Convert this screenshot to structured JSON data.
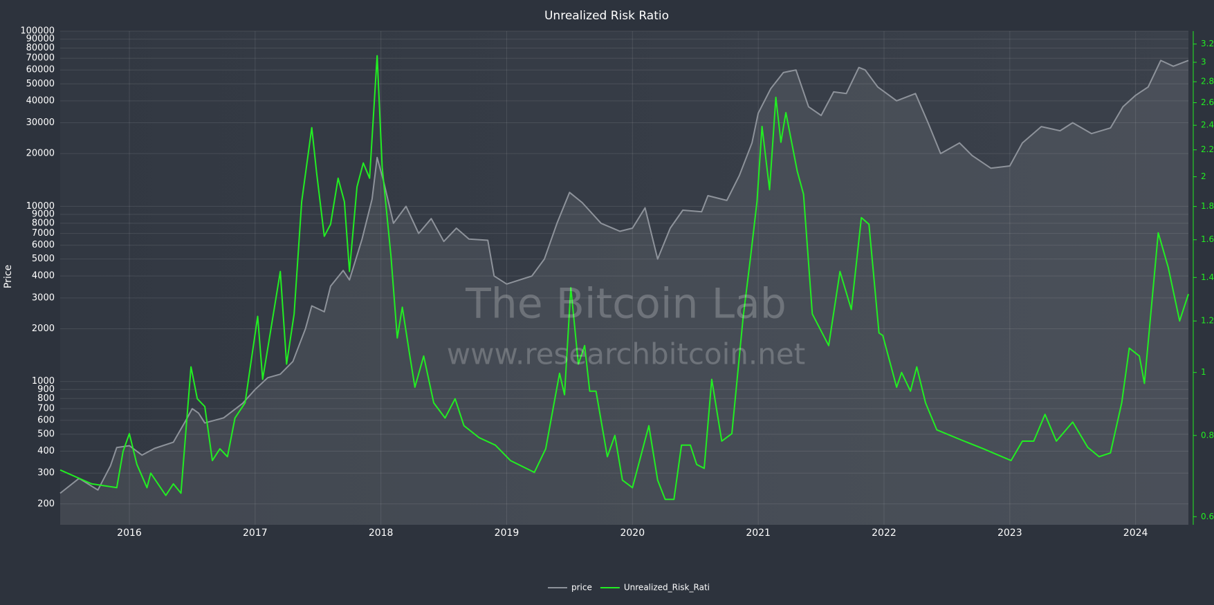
{
  "chart_data": {
    "type": "line",
    "title": "Unrealized Risk Ratio",
    "y_label": "Price",
    "annotations": [
      "The Bitcoin Lab",
      "www.researchbitcoin.net"
    ],
    "log_y": true,
    "log_y2": true,
    "grid": true,
    "legend": "bottom",
    "xlim": [
      2015.45,
      2024.42
    ],
    "xticks": [
      2016,
      2017,
      2018,
      2019,
      2020,
      2021,
      2022,
      2023,
      2024
    ],
    "ylim": [
      152,
      100000
    ],
    "yticks": [
      200,
      300,
      400,
      500,
      600,
      700,
      800,
      900,
      1000,
      2000,
      3000,
      4000,
      5000,
      6000,
      7000,
      8000,
      9000,
      10000,
      20000,
      30000,
      40000,
      50000,
      60000,
      70000,
      80000,
      90000,
      100000
    ],
    "y2lim": [
      0.583,
      3.35
    ],
    "y2ticks": [
      0.6,
      0.8,
      1,
      1.2,
      1.4,
      1.6,
      1.8,
      2,
      2.2,
      2.4,
      2.6,
      2.8,
      3,
      3.2
    ],
    "series": [
      {
        "name": "price",
        "color": "#8e939b",
        "x": [
          2015.45,
          2015.6,
          2015.75,
          2015.85,
          2015.9,
          2016.0,
          2016.1,
          2016.2,
          2016.35,
          2016.45,
          2016.5,
          2016.55,
          2016.6,
          2016.75,
          2016.9,
          2017.0,
          2017.1,
          2017.2,
          2017.3,
          2017.4,
          2017.45,
          2017.55,
          2017.6,
          2017.7,
          2017.75,
          2017.85,
          2017.93,
          2017.97,
          2018.02,
          2018.1,
          2018.2,
          2018.3,
          2018.4,
          2018.5,
          2018.6,
          2018.7,
          2018.85,
          2018.9,
          2019.0,
          2019.2,
          2019.3,
          2019.4,
          2019.5,
          2019.6,
          2019.75,
          2019.9,
          2020.0,
          2020.1,
          2020.2,
          2020.3,
          2020.4,
          2020.55,
          2020.6,
          2020.75,
          2020.85,
          2020.95,
          2021.0,
          2021.1,
          2021.2,
          2021.3,
          2021.4,
          2021.5,
          2021.6,
          2021.7,
          2021.8,
          2021.85,
          2021.95,
          2022.1,
          2022.25,
          2022.35,
          2022.45,
          2022.6,
          2022.7,
          2022.85,
          2023.0,
          2023.1,
          2023.25,
          2023.4,
          2023.5,
          2023.65,
          2023.8,
          2023.9,
          2024.0,
          2024.1,
          2024.2,
          2024.3,
          2024.42
        ],
        "values": [
          230,
          280,
          240,
          330,
          420,
          430,
          380,
          415,
          450,
          600,
          700,
          660,
          580,
          620,
          750,
          900,
          1050,
          1100,
          1300,
          2000,
          2700,
          2500,
          3500,
          4300,
          3800,
          6500,
          11000,
          19000,
          14000,
          8000,
          10000,
          7000,
          8500,
          6300,
          7500,
          6500,
          6400,
          4000,
          3600,
          4000,
          5000,
          8000,
          12000,
          10500,
          8000,
          7200,
          7500,
          9800,
          5000,
          7500,
          9500,
          9300,
          11500,
          10800,
          15000,
          23000,
          34000,
          47000,
          58000,
          60000,
          37000,
          33000,
          45000,
          44000,
          62000,
          60000,
          48000,
          40000,
          44000,
          30000,
          20000,
          23000,
          19500,
          16500,
          17000,
          23000,
          28500,
          27000,
          30000,
          26000,
          28000,
          37000,
          43000,
          48000,
          68000,
          63000,
          68000
        ]
      },
      {
        "name": "Unrealized_Risk_Rati",
        "color": "#22ee22",
        "axis": "y2",
        "x": [
          2015.45,
          2015.7,
          2015.9,
          2015.95,
          2016.0,
          2016.06,
          2016.14,
          2016.17,
          2016.29,
          2016.35,
          2016.41,
          2016.49,
          2016.54,
          2016.6,
          2016.66,
          2016.72,
          2016.78,
          2016.84,
          2016.92,
          2017.02,
          2017.06,
          2017.12,
          2017.2,
          2017.25,
          2017.31,
          2017.37,
          2017.45,
          2017.49,
          2017.55,
          2017.6,
          2017.66,
          2017.71,
          2017.75,
          2017.81,
          2017.86,
          2017.91,
          2017.97,
          2018.01,
          2018.08,
          2018.13,
          2018.17,
          2018.23,
          2018.27,
          2018.34,
          2018.42,
          2018.51,
          2018.59,
          2018.66,
          2018.78,
          2018.91,
          2019.03,
          2019.22,
          2019.31,
          2019.42,
          2019.46,
          2019.51,
          2019.57,
          2019.62,
          2019.66,
          2019.71,
          2019.8,
          2019.86,
          2019.92,
          2020.0,
          2020.13,
          2020.2,
          2020.26,
          2020.33,
          2020.39,
          2020.46,
          2020.51,
          2020.57,
          2020.63,
          2020.71,
          2020.79,
          2020.88,
          2020.94,
          2020.99,
          2021.03,
          2021.09,
          2021.14,
          2021.18,
          2021.22,
          2021.31,
          2021.36,
          2021.43,
          2021.56,
          2021.65,
          2021.74,
          2021.82,
          2021.88,
          2021.96,
          2021.99,
          2022.1,
          2022.14,
          2022.21,
          2022.26,
          2022.33,
          2022.42,
          2022.61,
          2022.79,
          2023.01,
          2023.1,
          2023.19,
          2023.28,
          2023.37,
          2023.5,
          2023.62,
          2023.71,
          2023.8,
          2023.89,
          2023.95,
          2024.03,
          2024.07,
          2024.18,
          2024.26,
          2024.35,
          2024.42
        ],
        "values": [
          0.708,
          0.674,
          0.665,
          0.756,
          0.805,
          0.722,
          0.665,
          0.7,
          0.647,
          0.674,
          0.652,
          1.02,
          0.911,
          0.886,
          0.732,
          0.763,
          0.742,
          0.851,
          0.898,
          1.22,
          0.976,
          1.15,
          1.43,
          1.03,
          1.23,
          1.83,
          2.38,
          2.02,
          1.62,
          1.69,
          1.99,
          1.83,
          1.43,
          1.93,
          2.1,
          1.99,
          3.07,
          2.07,
          1.51,
          1.13,
          1.26,
          1.06,
          0.949,
          1.06,
          0.898,
          0.851,
          0.911,
          0.828,
          0.794,
          0.773,
          0.732,
          0.702,
          0.763,
          0.997,
          0.924,
          1.35,
          1.03,
          1.1,
          0.936,
          0.936,
          0.742,
          0.8,
          0.683,
          0.665,
          0.828,
          0.683,
          0.638,
          0.638,
          0.773,
          0.773,
          0.722,
          0.712,
          0.976,
          0.784,
          0.805,
          1.215,
          1.51,
          1.83,
          2.39,
          1.91,
          2.65,
          2.26,
          2.51,
          2.04,
          1.88,
          1.23,
          1.1,
          1.43,
          1.25,
          1.73,
          1.69,
          1.15,
          1.14,
          0.949,
          1.0,
          0.936,
          1.02,
          0.898,
          0.816,
          0.788,
          0.763,
          0.732,
          0.784,
          0.784,
          0.862,
          0.784,
          0.839,
          0.767,
          0.742,
          0.752,
          0.898,
          1.09,
          1.06,
          0.962,
          1.64,
          1.45,
          1.2,
          1.32
        ]
      }
    ]
  }
}
